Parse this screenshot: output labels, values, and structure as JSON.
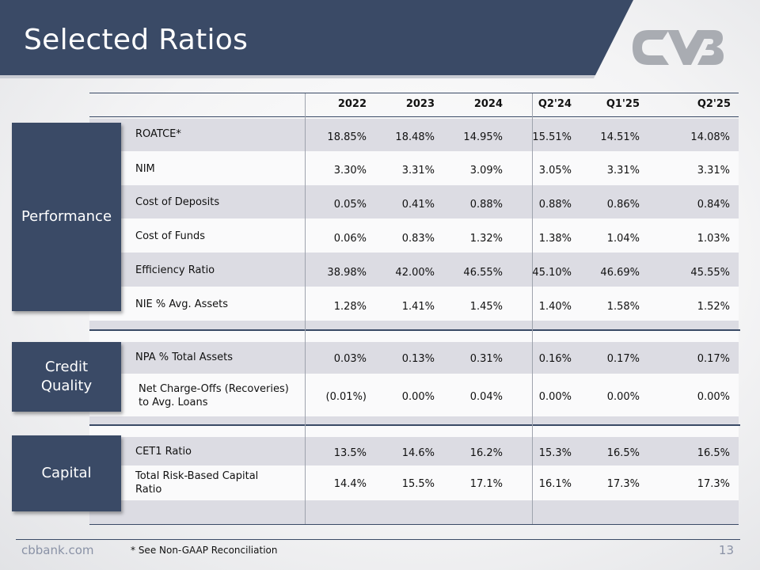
{
  "title": "Selected Ratios",
  "columns": [
    "2022",
    "2023",
    "2024",
    "Q2'24",
    "Q1'25",
    "Q2'25"
  ],
  "sections": [
    {
      "name": "Performance",
      "rows": [
        {
          "label": "ROATCE*",
          "values": [
            "18.85%",
            "18.48%",
            "14.95%",
            "15.51%",
            "14.51%",
            "14.08%"
          ]
        },
        {
          "label": "NIM",
          "values": [
            "3.30%",
            "3.31%",
            "3.09%",
            "3.05%",
            "3.31%",
            "3.31%"
          ]
        },
        {
          "label": "Cost of Deposits",
          "values": [
            "0.05%",
            "0.41%",
            "0.88%",
            "0.88%",
            "0.86%",
            "0.84%"
          ]
        },
        {
          "label": "Cost of Funds",
          "values": [
            "0.06%",
            "0.83%",
            "1.32%",
            "1.38%",
            "1.04%",
            "1.03%"
          ]
        },
        {
          "label": "Efficiency Ratio",
          "values": [
            "38.98%",
            "42.00%",
            "46.55%",
            "45.10%",
            "46.69%",
            "45.55%"
          ]
        },
        {
          "label": "NIE % Avg. Assets",
          "values": [
            "1.28%",
            "1.41%",
            "1.45%",
            "1.40%",
            "1.58%",
            "1.52%"
          ]
        }
      ]
    },
    {
      "name": "Credit Quality",
      "rows": [
        {
          "label": "NPA % Total Assets",
          "values": [
            "0.03%",
            "0.13%",
            "0.31%",
            "0.16%",
            "0.17%",
            "0.17%"
          ]
        },
        {
          "label": "Net Charge-Offs (Recoveries) to Avg. Loans",
          "values": [
            "(0.01%)",
            "0.00%",
            "0.04%",
            "0.00%",
            "0.00%",
            "0.00%"
          ]
        }
      ]
    },
    {
      "name": "Capital",
      "rows": [
        {
          "label": "CET1 Ratio",
          "values": [
            "13.5%",
            "14.6%",
            "16.2%",
            "15.3%",
            "16.5%",
            "16.5%"
          ]
        },
        {
          "label": "Total Risk-Based Capital Ratio",
          "values": [
            "14.4%",
            "15.5%",
            "17.1%",
            "16.1%",
            "17.3%",
            "17.3%"
          ]
        }
      ]
    }
  ],
  "footer": {
    "site": "cbbank.com",
    "note": "* See Non-GAAP Reconciliation",
    "page": "13"
  },
  "logo": {
    "name": "cvb-logo",
    "color": "#a9acb2"
  },
  "colors": {
    "banner": "#3a4a66",
    "accent": "#3a4a66"
  }
}
